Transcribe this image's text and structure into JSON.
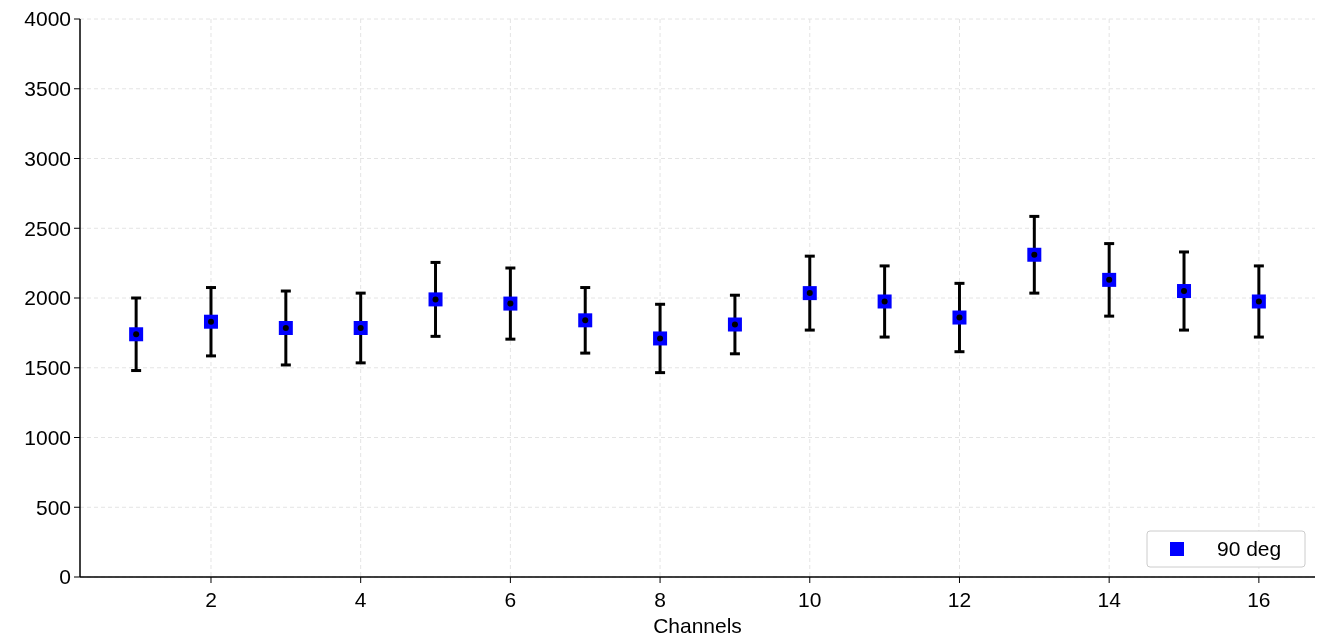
{
  "chart_data": {
    "type": "scatter",
    "xlabel": "Channels",
    "x": [
      1,
      2,
      3,
      4,
      5,
      6,
      7,
      8,
      9,
      10,
      11,
      12,
      13,
      14,
      15,
      16
    ],
    "series": [
      {
        "name": "90 deg",
        "color": "#0000ff",
        "values": [
          1740,
          1830,
          1785,
          1785,
          1990,
          1960,
          1840,
          1710,
          1810,
          2035,
          1975,
          1860,
          2310,
          2130,
          2050,
          1975
        ],
        "errors": [
          260,
          245,
          265,
          250,
          265,
          255,
          235,
          245,
          210,
          265,
          255,
          245,
          275,
          260,
          280,
          255
        ]
      }
    ],
    "xlim": [
      0.25,
      16.75
    ],
    "ylim": [
      0,
      4000
    ],
    "xticks": [
      2,
      4,
      6,
      8,
      10,
      12,
      14,
      16
    ],
    "yticks": [
      0,
      500,
      1000,
      1500,
      2000,
      2500,
      3000,
      3500,
      4000
    ],
    "grid": true,
    "legend": "bottom right",
    "marker": "square"
  }
}
